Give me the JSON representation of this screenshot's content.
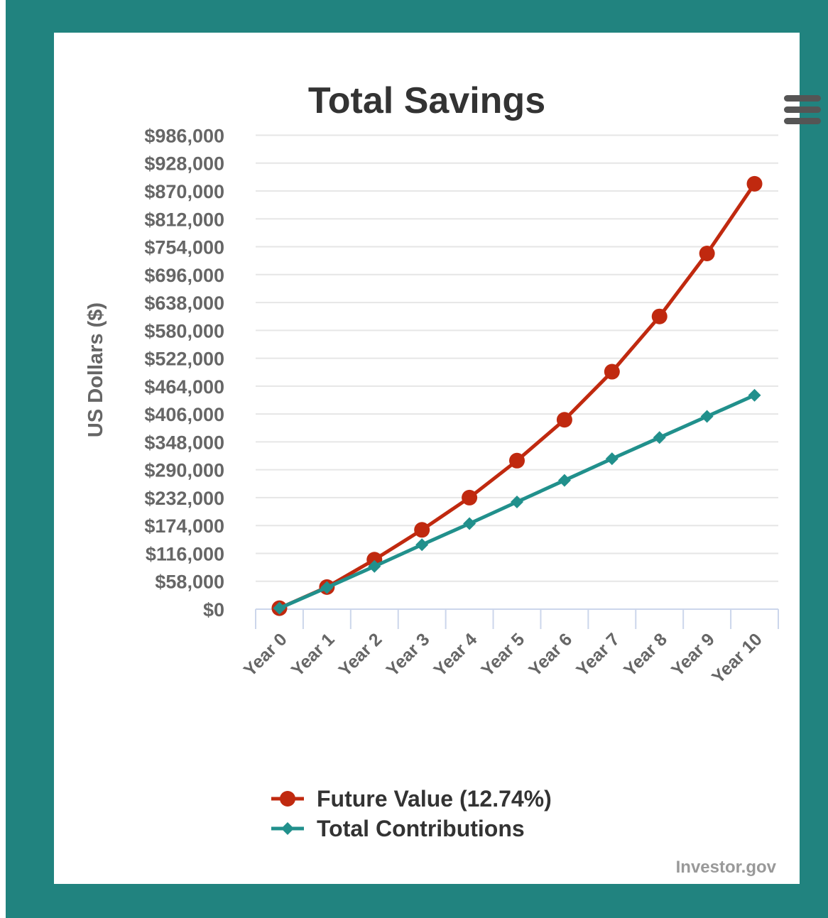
{
  "chart_data": {
    "type": "line",
    "title": "Total Savings",
    "ylabel": "US Dollars ($)",
    "xlabel": "",
    "ylim": [
      0,
      1000000
    ],
    "y_ticks": [
      0,
      58000,
      116000,
      174000,
      232000,
      290000,
      348000,
      406000,
      464000,
      522000,
      580000,
      638000,
      696000,
      754000,
      812000,
      870000,
      928000,
      986000
    ],
    "y_tick_labels": [
      "$0",
      "$58,000",
      "$116,000",
      "$174,000",
      "$232,000",
      "$290,000",
      "$348,000",
      "$406,000",
      "$464,000",
      "$522,000",
      "$580,000",
      "$638,000",
      "$696,000",
      "$754,000",
      "$812,000",
      "$870,000",
      "$928,000",
      "$986,000"
    ],
    "categories": [
      "Year 0",
      "Year 1",
      "Year 2",
      "Year 3",
      "Year 4",
      "Year 5",
      "Year 6",
      "Year 7",
      "Year 8",
      "Year 9",
      "Year 10"
    ],
    "grid": true,
    "legend_position": "bottom",
    "series": [
      {
        "name": "Future Value (12.74%)",
        "color": "#c0290f",
        "marker": "circle",
        "values": [
          2000,
          46000,
          103000,
          165000,
          232000,
          309000,
          394000,
          494000,
          609000,
          740000,
          885000
        ]
      },
      {
        "name": "Total Contributions",
        "color": "#21908c",
        "marker": "diamond",
        "values": [
          2000,
          45000,
          89000,
          134000,
          178000,
          223000,
          268000,
          313000,
          357000,
          401000,
          445000
        ]
      }
    ]
  },
  "menu": {
    "icon": "hamburger-menu-icon"
  },
  "credits": {
    "text": "Investor.gov"
  }
}
